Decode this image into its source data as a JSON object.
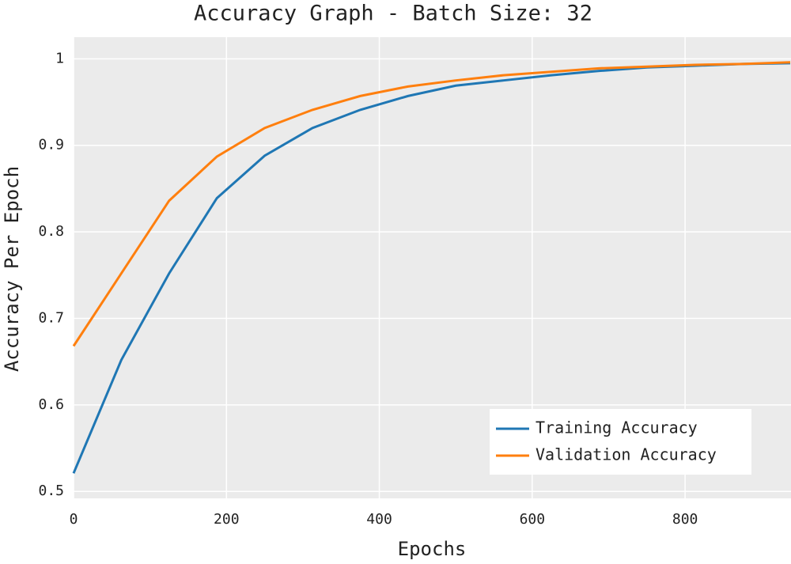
{
  "chart_data": {
    "type": "line",
    "title": "Accuracy Graph - Batch Size: 32",
    "x_label": "Epochs",
    "y_label": "Accuracy Per Epoch",
    "x": [
      0,
      62.5,
      125,
      187.5,
      250,
      312.5,
      375,
      437.5,
      500,
      562.5,
      625,
      687.5,
      750,
      812.5,
      875,
      937.5
    ],
    "series": [
      {
        "name": "Training Accuracy",
        "color": "#1f77b4",
        "values": [
          0.521,
          0.652,
          0.752,
          0.839,
          0.888,
          0.92,
          0.941,
          0.957,
          0.969,
          0.975,
          0.981,
          0.986,
          0.99,
          0.992,
          0.994,
          0.995
        ]
      },
      {
        "name": "Validation Accuracy",
        "color": "#ff7f0e",
        "values": [
          0.668,
          0.752,
          0.836,
          0.887,
          0.92,
          0.941,
          0.957,
          0.968,
          0.975,
          0.981,
          0.985,
          0.989,
          0.991,
          0.993,
          0.994,
          0.996
        ]
      }
    ],
    "xlim": [
      0,
      937.5
    ],
    "ylim": [
      0.492,
      1.025
    ],
    "xticks": [
      0,
      200,
      400,
      600,
      800
    ],
    "yticks": [
      0.5,
      0.6,
      0.7,
      0.8,
      0.9,
      1
    ],
    "grid": true,
    "legend": "lower right"
  }
}
